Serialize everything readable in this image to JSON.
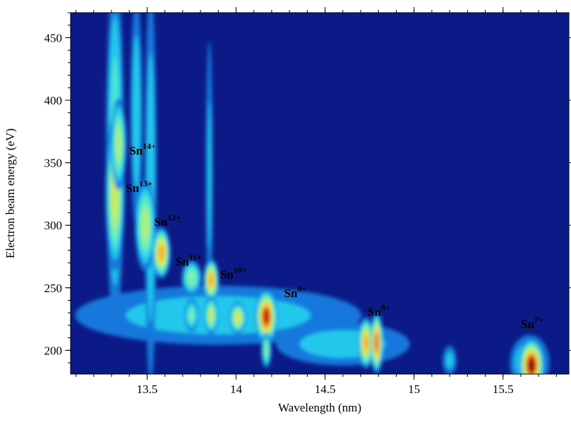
{
  "chart_data": {
    "type": "heatmap",
    "xlabel": "Wavelength (nm)",
    "ylabel": "Electron beam energy (eV)",
    "xlim": [
      13.07,
      15.87
    ],
    "ylim": [
      181,
      470
    ],
    "xticks": [
      13.5,
      14.0,
      14.5,
      15.0,
      15.5
    ],
    "yticks": [
      200,
      250,
      300,
      350,
      400,
      450
    ],
    "xminor_step": 0.1,
    "yminor_step": 10,
    "background": "#0b1a86",
    "spots": [
      {
        "x": 13.9,
        "y": 228,
        "wx": 0.75,
        "wy": 22,
        "intensity": 0.33
      },
      {
        "x": 14.6,
        "y": 205,
        "wx": 0.35,
        "wy": 16,
        "intensity": 0.33
      },
      {
        "x": 15.2,
        "y": 192,
        "wx": 0.04,
        "wy": 12,
        "intensity": 0.3
      },
      {
        "x": 15.65,
        "y": 190,
        "wx": 0.09,
        "wy": 18,
        "intensity": 0.4
      },
      {
        "x": 13.32,
        "y": 360,
        "wx": 0.04,
        "wy": 110,
        "intensity": 0.42
      },
      {
        "x": 13.44,
        "y": 390,
        "wx": 0.03,
        "wy": 80,
        "intensity": 0.35
      },
      {
        "x": 13.52,
        "y": 330,
        "wx": 0.03,
        "wy": 140,
        "intensity": 0.35
      },
      {
        "x": 13.85,
        "y": 340,
        "wx": 0.02,
        "wy": 110,
        "intensity": 0.3
      },
      {
        "x": 13.32,
        "y": 325,
        "wx": 0.035,
        "wy": 40,
        "intensity": 0.62
      },
      {
        "x": 13.34,
        "y": 365,
        "wx": 0.03,
        "wy": 25,
        "intensity": 0.55
      },
      {
        "x": 13.49,
        "y": 300,
        "wx": 0.04,
        "wy": 25,
        "intensity": 0.55
      },
      {
        "x": 13.58,
        "y": 278,
        "wx": 0.03,
        "wy": 12,
        "intensity": 0.82
      },
      {
        "x": 13.75,
        "y": 258,
        "wx": 0.04,
        "wy": 10,
        "intensity": 0.5
      },
      {
        "x": 13.86,
        "y": 256,
        "wx": 0.025,
        "wy": 10,
        "intensity": 0.82
      },
      {
        "x": 13.86,
        "y": 228,
        "wx": 0.025,
        "wy": 10,
        "intensity": 0.6
      },
      {
        "x": 13.75,
        "y": 228,
        "wx": 0.03,
        "wy": 10,
        "intensity": 0.45
      },
      {
        "x": 14.01,
        "y": 226,
        "wx": 0.03,
        "wy": 8,
        "intensity": 0.66
      },
      {
        "x": 14.17,
        "y": 227,
        "wx": 0.035,
        "wy": 12,
        "intensity": 0.97
      },
      {
        "x": 14.17,
        "y": 200,
        "wx": 0.02,
        "wy": 10,
        "intensity": 0.5
      },
      {
        "x": 14.73,
        "y": 206,
        "wx": 0.025,
        "wy": 12,
        "intensity": 0.82
      },
      {
        "x": 14.79,
        "y": 206,
        "wx": 0.02,
        "wy": 14,
        "intensity": 0.9
      },
      {
        "x": 15.66,
        "y": 188,
        "wx": 0.04,
        "wy": 12,
        "intensity": 1.0
      }
    ],
    "annotation_color": "#e07a30",
    "annotations": [
      {
        "text": "Sn",
        "sup": "14+",
        "x": 13.4,
        "y": 360
      },
      {
        "text": "Sn",
        "sup": "13+",
        "x": 13.38,
        "y": 330
      },
      {
        "text": "Sn",
        "sup": "12+",
        "x": 13.54,
        "y": 303
      },
      {
        "text": "Sn",
        "sup": "11+",
        "x": 13.66,
        "y": 271
      },
      {
        "text": "Sn",
        "sup": "10+",
        "x": 13.91,
        "y": 261
      },
      {
        "text": "Sn",
        "sup": "9+",
        "x": 14.27,
        "y": 246
      },
      {
        "text": "Sn",
        "sup": "8+",
        "x": 14.74,
        "y": 231
      },
      {
        "text": "Sn",
        "sup": "7+",
        "x": 15.6,
        "y": 221
      }
    ]
  }
}
